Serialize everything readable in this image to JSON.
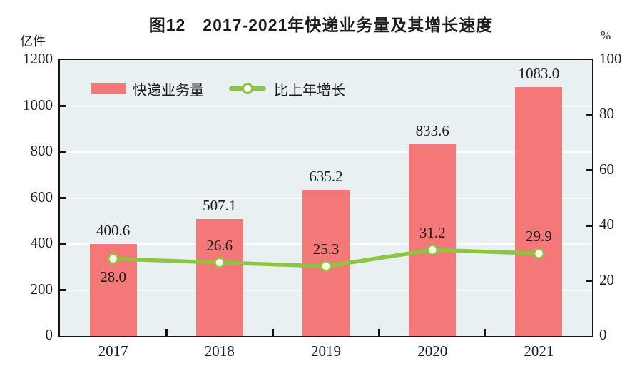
{
  "title": "图12　2017-2021年快递业务量及其增长速度",
  "left_axis": {
    "unit": "亿件",
    "ticks": [
      "0",
      "200",
      "400",
      "600",
      "800",
      "1000",
      "1200"
    ],
    "max": 1200,
    "step": 200
  },
  "right_axis": {
    "unit": "%",
    "ticks": [
      "0",
      "20",
      "40",
      "60",
      "80",
      "100"
    ],
    "max": 100,
    "step": 20
  },
  "legend": [
    {
      "label": "快递业务量",
      "type": "bar"
    },
    {
      "label": "比上年增长",
      "type": "line"
    }
  ],
  "colors": {
    "bar": "#f57878",
    "line": "#8cc63e",
    "marker_fill": "#fdfdf0",
    "plot_bg": "#e8f0f2",
    "grid": "#fafdfd",
    "axis": "#141414",
    "text": "#1c1c1c"
  },
  "chart_data": {
    "type": "bar+line",
    "title": "图12 2017-2021年快递业务量及其增长速度",
    "categories": [
      "2017",
      "2018",
      "2019",
      "2020",
      "2021"
    ],
    "series": [
      {
        "name": "快递业务量",
        "type": "bar",
        "axis": "left",
        "values": [
          400.6,
          507.1,
          635.2,
          833.6,
          1083.0
        ],
        "labels": [
          "400.6",
          "507.1",
          "635.2",
          "833.6",
          "1083.0"
        ]
      },
      {
        "name": "比上年增长",
        "type": "line",
        "axis": "right",
        "values": [
          28.0,
          26.6,
          25.3,
          31.2,
          29.9
        ],
        "labels": [
          "28.0",
          "26.6",
          "25.3",
          "31.2",
          "29.9"
        ],
        "label_positions": [
          "below",
          "above",
          "above",
          "above",
          "above"
        ]
      }
    ],
    "left_ylabel": "亿件",
    "right_ylabel": "%",
    "left_ylim": [
      0,
      1200
    ],
    "right_ylim": [
      0,
      100
    ],
    "grid": true,
    "legend_position": "top-left-inside"
  }
}
